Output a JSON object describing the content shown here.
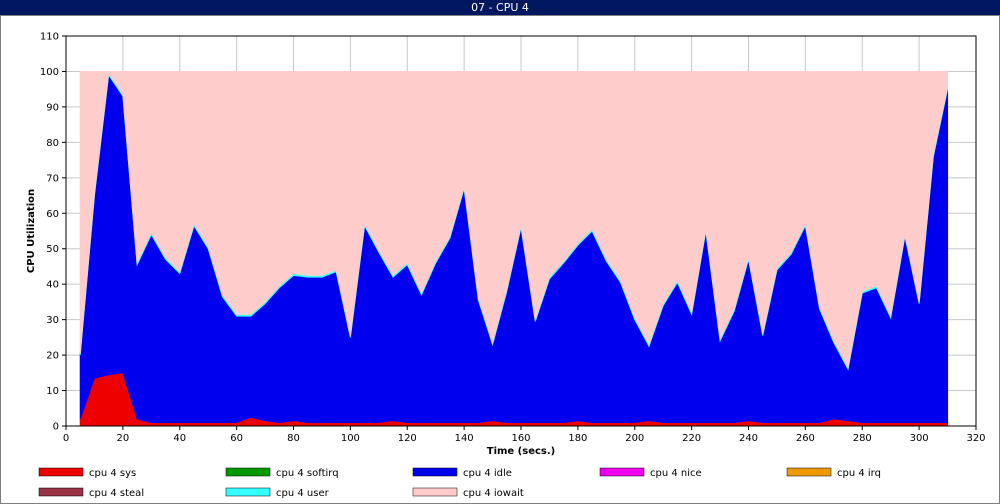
{
  "window": {
    "title": "07 - CPU 4"
  },
  "chart_data": {
    "type": "area",
    "stacked": true,
    "xlabel": "Time (secs.)",
    "ylabel": "CPU Utilization",
    "xlim": [
      0,
      320
    ],
    "ylim": [
      0,
      110
    ],
    "xticks": [
      0,
      20,
      40,
      60,
      80,
      100,
      120,
      140,
      160,
      180,
      200,
      220,
      240,
      260,
      280,
      300,
      320
    ],
    "yticks": [
      0,
      10,
      20,
      30,
      40,
      50,
      60,
      70,
      80,
      90,
      100,
      110
    ],
    "grid": true,
    "legend_position": "bottom",
    "x": [
      5,
      10,
      15,
      20,
      25,
      30,
      35,
      40,
      45,
      50,
      55,
      60,
      65,
      70,
      75,
      80,
      85,
      90,
      95,
      100,
      105,
      110,
      115,
      120,
      125,
      130,
      135,
      140,
      145,
      150,
      155,
      160,
      165,
      170,
      175,
      180,
      185,
      190,
      195,
      200,
      205,
      210,
      215,
      220,
      225,
      230,
      235,
      240,
      245,
      250,
      255,
      260,
      265,
      270,
      275,
      280,
      285,
      290,
      295,
      300,
      305,
      310
    ],
    "series": [
      {
        "name": "cpu 4 sys",
        "color": "#ee0000",
        "values": [
          2,
          13.5,
          14.5,
          15,
          2,
          1,
          1,
          1,
          1,
          1,
          1,
          1,
          2.5,
          1.5,
          1,
          1.5,
          1,
          1,
          1,
          1,
          1,
          1,
          1.5,
          1,
          1,
          1,
          1,
          1,
          1,
          1.5,
          1,
          1,
          1,
          1,
          1,
          1.5,
          1,
          1,
          1,
          1,
          1.5,
          1,
          1,
          1,
          1,
          1,
          1,
          1.5,
          1,
          1,
          1,
          1,
          1,
          2,
          1.5,
          1,
          1,
          1,
          1,
          1,
          1,
          1
        ]
      },
      {
        "name": "cpu 4 softirq",
        "color": "#009900",
        "values": [
          0,
          0,
          0,
          0,
          0,
          0,
          0,
          0,
          0,
          0,
          0,
          0,
          0,
          0,
          0,
          0,
          0,
          0,
          0,
          0,
          0,
          0,
          0,
          0,
          0,
          0,
          0,
          0,
          0,
          0,
          0,
          0,
          0,
          0,
          0,
          0,
          0,
          0,
          0,
          0,
          0,
          0,
          0,
          0,
          0,
          0,
          0,
          0,
          0,
          0,
          0,
          0,
          0,
          0,
          0,
          0,
          0,
          0,
          0,
          0,
          0,
          0
        ]
      },
      {
        "name": "cpu 4 idle",
        "color": "#0000ee",
        "values": [
          18,
          51.5,
          84.5,
          78,
          43.5,
          53,
          46,
          42,
          55.5,
          49,
          35.5,
          30,
          28.5,
          33,
          38,
          41,
          41,
          41,
          42.5,
          24,
          55.5,
          48,
          40.5,
          44.5,
          36,
          45,
          52,
          66,
          34.5,
          21.5,
          37,
          55,
          28.5,
          40.5,
          45,
          49.5,
          54,
          45.5,
          39.5,
          29,
          21,
          33,
          39.5,
          30.5,
          54,
          23,
          31.5,
          45.5,
          24.5,
          43,
          47.5,
          55.5,
          32,
          21.5,
          14.5,
          36.5,
          38,
          29.5,
          52.5,
          33.5,
          75,
          94
        ]
      },
      {
        "name": "cpu 4 nice",
        "color": "#ee00ee",
        "values": [
          0,
          0,
          0,
          0,
          0,
          0,
          0,
          0,
          0,
          0,
          0,
          0,
          0,
          0,
          0,
          0,
          0,
          0,
          0,
          0,
          0,
          0,
          0,
          0,
          0,
          0,
          0,
          0,
          0,
          0,
          0,
          0,
          0,
          0,
          0,
          0,
          0,
          0,
          0,
          0,
          0,
          0,
          0,
          0,
          0,
          0,
          0,
          0,
          0,
          0,
          0,
          0,
          0,
          0,
          0,
          0,
          0,
          0,
          0,
          0,
          0,
          0
        ]
      },
      {
        "name": "cpu 4 irq",
        "color": "#ee9900",
        "values": [
          0,
          0,
          0,
          0,
          0,
          0,
          0,
          0,
          0,
          0,
          0,
          0,
          0,
          0,
          0,
          0,
          0,
          0,
          0,
          0,
          0,
          0,
          0,
          0,
          0,
          0,
          0,
          0,
          0,
          0,
          0,
          0,
          0,
          0,
          0,
          0,
          0,
          0,
          0,
          0,
          0,
          0,
          0,
          0,
          0,
          0,
          0,
          0,
          0,
          0,
          0,
          0,
          0,
          0,
          0,
          0,
          0,
          0,
          0,
          0,
          0,
          0
        ]
      },
      {
        "name": "cpu 4 steal",
        "color": "#993344",
        "values": [
          0,
          0,
          0,
          0,
          0,
          0,
          0,
          0,
          0,
          0,
          0,
          0,
          0,
          0,
          0,
          0,
          0,
          0,
          0,
          0,
          0,
          0,
          0,
          0,
          0,
          0,
          0,
          0,
          0,
          0,
          0,
          0,
          0,
          0,
          0,
          0,
          0,
          0,
          0,
          0,
          0,
          0,
          0,
          0,
          0,
          0,
          0,
          0,
          0,
          0,
          0,
          0,
          0,
          0,
          0,
          0,
          0,
          0,
          0,
          0,
          0,
          0
        ]
      },
      {
        "name": "cpu 4 user",
        "color": "#33ffff",
        "values": [
          0.5,
          0.5,
          0.5,
          0.5,
          0.5,
          0.5,
          0.5,
          0.5,
          0.5,
          0.5,
          0.5,
          0.5,
          0.5,
          0.5,
          0.5,
          0.5,
          0.5,
          0.5,
          0.5,
          0.5,
          0.5,
          0.5,
          0.5,
          0.5,
          0.5,
          0.5,
          0.5,
          0.5,
          0.5,
          0.5,
          0.5,
          0.5,
          0.5,
          0.5,
          0.5,
          0.5,
          0.5,
          0.5,
          0.5,
          0.5,
          0.5,
          0.5,
          0.5,
          0.5,
          0.5,
          0.5,
          0.5,
          0.5,
          0.5,
          0.5,
          0.5,
          0.5,
          0.5,
          0.5,
          0.5,
          0.5,
          0.5,
          0.5,
          0.5,
          0.5,
          0.5,
          0.5
        ]
      },
      {
        "name": "cpu 4 iowait",
        "color": "#ffcccc",
        "values": [
          79.5,
          34.5,
          0.5,
          6.5,
          54,
          45.5,
          52.5,
          56.5,
          43,
          49.5,
          63,
          68.5,
          68.5,
          65,
          60.5,
          57,
          57.5,
          57.5,
          56,
          74.5,
          43,
          50.5,
          57.5,
          54,
          62.5,
          53.5,
          46.5,
          32.5,
          64,
          76.5,
          61.5,
          43.5,
          70,
          58,
          53.5,
          48.5,
          44.5,
          53,
          59,
          69.5,
          77,
          65.5,
          59,
          68,
          44.5,
          75.5,
          67,
          52.5,
          74,
          55.5,
          51,
          43,
          66.5,
          76,
          83.5,
          62,
          60.5,
          69,
          46,
          65,
          23.5,
          4.5
        ]
      }
    ]
  }
}
